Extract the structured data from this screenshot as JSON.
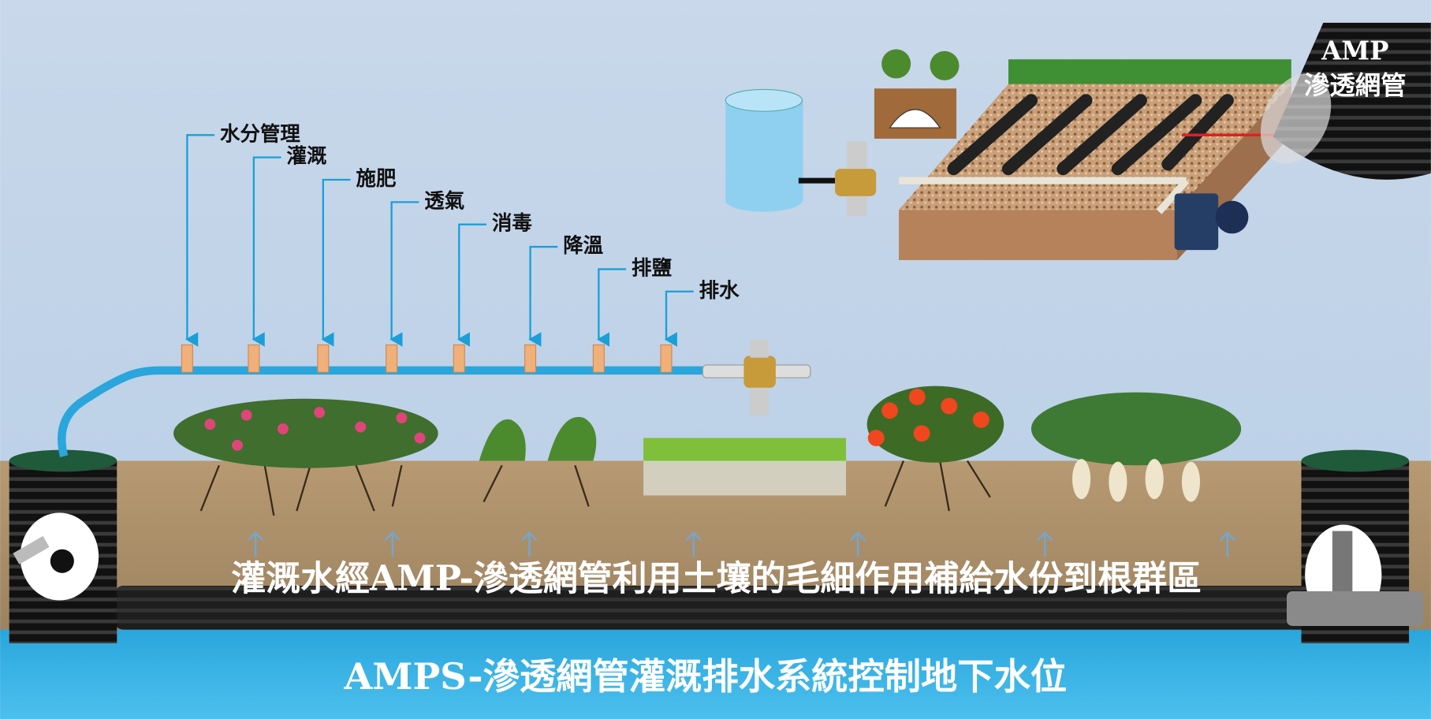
{
  "labels": [
    "水分管理",
    "灌溉",
    "施肥",
    "透氣",
    "消毒",
    "降溫",
    "排鹽",
    "排水"
  ],
  "inset": {
    "label_line1": "AMP",
    "label_line2": "滲透網管"
  },
  "caption": "灌溉水經AMP-滲透網管利用土壤的毛細作用補給水份到根群區",
  "title": "AMPS-滲透網管灌溉排水系統控制地下水位"
}
